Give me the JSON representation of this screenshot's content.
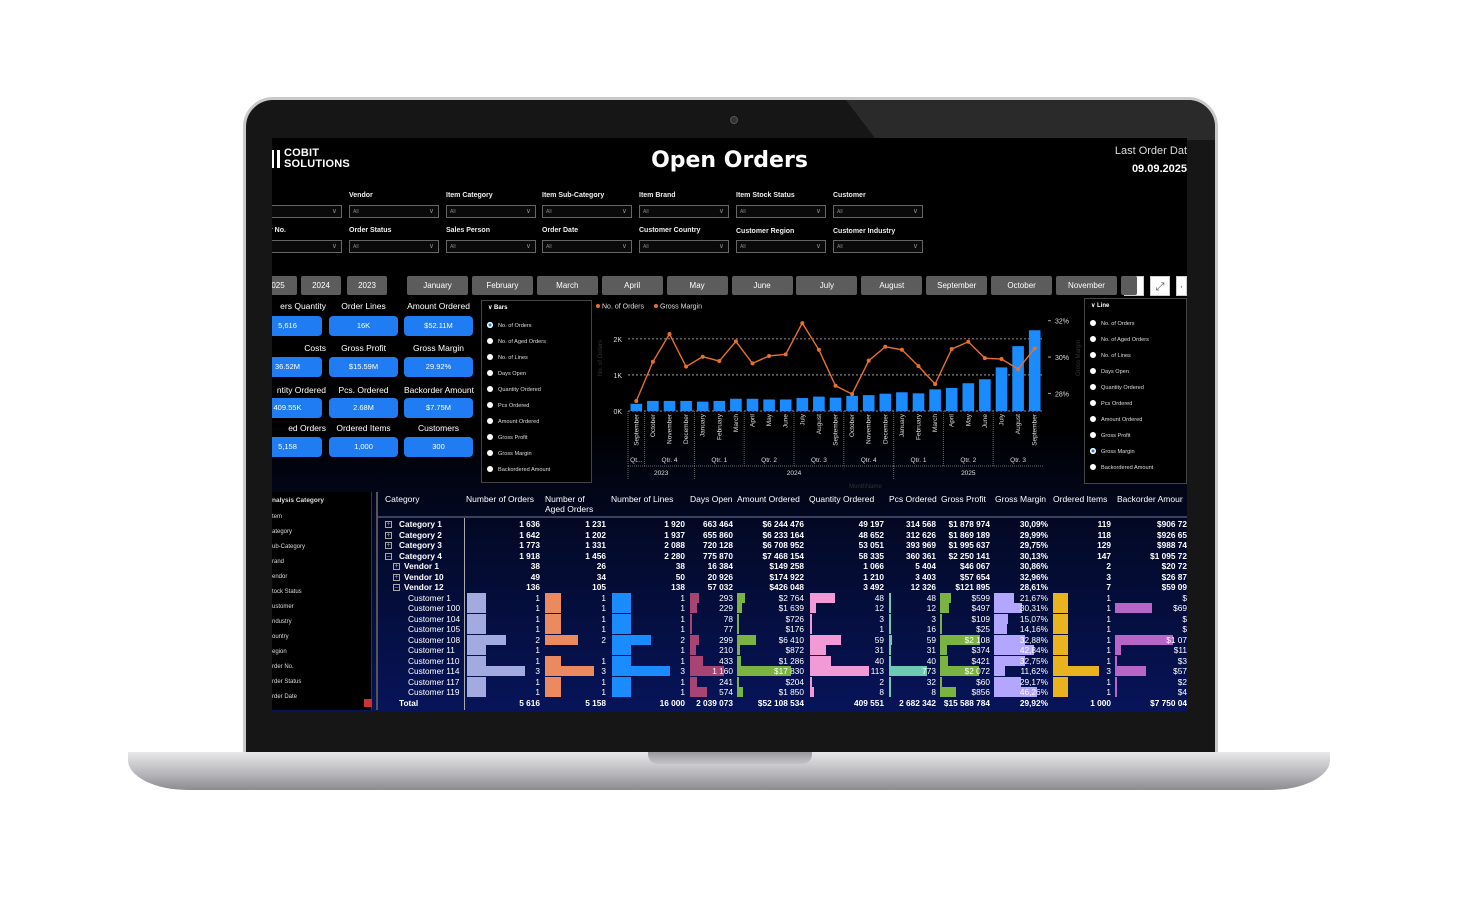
{
  "report": {
    "logo": "COBIT SOLUTIONS",
    "title": "Open Orders",
    "last_order_label": "Last Order Dat",
    "last_order_date": "09.09.2025"
  },
  "filters": [
    {
      "label": "",
      "value": ""
    },
    {
      "label": "Vendor",
      "value": "All"
    },
    {
      "label": "Item Category",
      "value": "All"
    },
    {
      "label": "Item Sub-Category",
      "value": "All"
    },
    {
      "label": "Item Brand",
      "value": "All"
    },
    {
      "label": "Item Stock Status",
      "value": "All"
    },
    {
      "label": "Customer",
      "value": "All"
    },
    {
      "label": "r No.",
      "value": ""
    },
    {
      "label": "Order Status",
      "value": "All"
    },
    {
      "label": "Sales Person",
      "value": "All"
    },
    {
      "label": "Order Date",
      "value": "All"
    },
    {
      "label": "Customer Country",
      "value": "All"
    },
    {
      "label": "Customer Region",
      "value": "All"
    },
    {
      "label": "Customer Industry",
      "value": "All"
    }
  ],
  "years": [
    "025",
    "2024",
    "2023"
  ],
  "months": [
    "January",
    "February",
    "March",
    "April",
    "May",
    "June",
    "July",
    "August",
    "September",
    "October",
    "November"
  ],
  "toolbar": {
    "filter_icon": "filter-icon",
    "focus_icon": "focus-mode-icon",
    "more_icon": "more-icon"
  },
  "kpis": [
    {
      "label": "ers Quantity",
      "value": "5,616"
    },
    {
      "label": "Order Lines",
      "value": "16K"
    },
    {
      "label": "Amount Ordered",
      "value": "$52.11M"
    },
    {
      "label": "Costs",
      "value": "36.52M"
    },
    {
      "label": "Gross Profit",
      "value": "$15.59M"
    },
    {
      "label": "Gross Margin",
      "value": "29.92%"
    },
    {
      "label": "ntity Ordered",
      "value": "409.55K"
    },
    {
      "label": "Pcs. Ordered",
      "value": "2.68M"
    },
    {
      "label": "Backorder Amount",
      "value": "$7.75M"
    },
    {
      "label": "ed Orders",
      "value": "5,158"
    },
    {
      "label": "Ordered Items",
      "value": "1,000"
    },
    {
      "label": "Customers",
      "value": "300"
    }
  ],
  "bars_slicer": {
    "title": "Bars",
    "selected": 0,
    "items": [
      "No. of Orders",
      "No. of Aged Orders",
      "No. of Lines",
      "Days Open",
      "Quantity Ordered",
      "Pcs Ordered",
      "Amount Ordered",
      "Gross Profit",
      "Gross Margin",
      "Backordered Amount"
    ]
  },
  "line_slicer": {
    "title": "Line",
    "selected": 8,
    "items": [
      "No. of Orders",
      "No. of Aged Orders",
      "No. of Lines",
      "Days Open",
      "Quantity Ordered",
      "Pcs Ordered",
      "Amount Ordered",
      "Gross Profit",
      "Gross Margin",
      "Backordered Amount"
    ]
  },
  "chart_data": {
    "type": "bar+line",
    "legend": [
      "No. of Orders",
      "Gross Margin"
    ],
    "legend_position": "top-left",
    "ylabel": "No. of Orders",
    "y2label": "Gross Margin",
    "xlabel": "MonthName",
    "ylim": [
      0,
      2.58
    ],
    "y_ticks": [
      "0K",
      "1K",
      "2K"
    ],
    "y2lim": [
      27.03,
      32.15
    ],
    "y2_ticks": [
      "28%",
      "30%",
      "32%"
    ],
    "grid": true,
    "categories": [
      "September",
      "October",
      "November",
      "December",
      "January",
      "February",
      "March",
      "April",
      "May",
      "June",
      "July",
      "August",
      "September",
      "October",
      "November",
      "December",
      "January",
      "February",
      "March",
      "April",
      "May",
      "June",
      "July",
      "August",
      "September"
    ],
    "quarters": [
      {
        "label": "Qt...",
        "span": 1
      },
      {
        "label": "Qtr. 4",
        "span": 3
      },
      {
        "label": "Qtr. 1",
        "span": 3
      },
      {
        "label": "Qtr. 2",
        "span": 3
      },
      {
        "label": "Qtr. 3",
        "span": 3
      },
      {
        "label": "Qtr. 4",
        "span": 3
      },
      {
        "label": "Qtr. 1",
        "span": 3
      },
      {
        "label": "Qtr. 2",
        "span": 3
      },
      {
        "label": "Qtr. 3",
        "span": 3
      }
    ],
    "years": [
      {
        "label": "2023",
        "span": 4
      },
      {
        "label": "2024",
        "span": 12
      },
      {
        "label": "2025",
        "span": 9
      }
    ],
    "series": [
      {
        "name": "No. of Orders",
        "type": "bar",
        "unit": "K",
        "color": "#1a8cff",
        "values": [
          0.2,
          0.28,
          0.28,
          0.28,
          0.26,
          0.28,
          0.34,
          0.34,
          0.32,
          0.32,
          0.36,
          0.4,
          0.37,
          0.42,
          0.44,
          0.48,
          0.52,
          0.49,
          0.6,
          0.64,
          0.77,
          0.88,
          1.21,
          1.8,
          2.24
        ]
      },
      {
        "name": "Gross Margin",
        "type": "line",
        "unit": "%",
        "color": "#e8702a",
        "values": [
          27.58,
          29.74,
          31.27,
          29.47,
          30.02,
          29.78,
          30.86,
          29.65,
          30.06,
          30.15,
          31.87,
          30.4,
          28.42,
          27.96,
          29.8,
          30.57,
          30.4,
          29.5,
          28.51,
          30.44,
          30.84,
          29.94,
          29.89,
          29.34,
          30.48
        ]
      }
    ]
  },
  "analysis_panel": {
    "title": "nalysis Category",
    "items": [
      "tem",
      "ategory",
      "ub-Category",
      "rand",
      "endor",
      "tock Status",
      "ustomer",
      "ndustry",
      "ountry",
      "egion",
      "rder No.",
      "rder Status",
      "rder Date"
    ]
  },
  "matrix": {
    "columns": [
      "Category",
      "Number of Orders",
      "Number of\nAged Orders",
      "Number of Lines",
      "Days Open",
      "Amount Ordered",
      "Quantity Ordered",
      "Pcs Ordered",
      "Gross Profit",
      "Gross Margin",
      "Ordered Items",
      "Backorder Amour"
    ],
    "bar_colors": [
      "#a3aae0",
      "#ea8a5e",
      "#1a8cff",
      "#a84473",
      "#7bb342",
      "#f29ad6",
      "#6fcab4",
      "#7bb342",
      "#b3a6ff",
      "#e9b320",
      "#b765c6"
    ],
    "rows": [
      {
        "level": 0,
        "exp": "+",
        "label": "Category 1",
        "values": [
          "1 636",
          "1 231",
          "1 920",
          "663 464",
          "$6 244 476",
          "49 197",
          "314 568",
          "$1 878 974",
          "30,09%",
          "119",
          "$906 72"
        ]
      },
      {
        "level": 0,
        "exp": "+",
        "label": "Category 2",
        "values": [
          "1 642",
          "1 202",
          "1 937",
          "655 860",
          "$6 233 164",
          "48 652",
          "312 626",
          "$1 869 189",
          "29,99%",
          "118",
          "$926 65"
        ]
      },
      {
        "level": 0,
        "exp": "+",
        "label": "Category 3",
        "values": [
          "1 773",
          "1 331",
          "2 088",
          "720 128",
          "$6 708 952",
          "53 051",
          "393 969",
          "$1 995 637",
          "29,75%",
          "129",
          "$988 74"
        ]
      },
      {
        "level": 0,
        "exp": "-",
        "label": "Category 4",
        "values": [
          "1 918",
          "1 456",
          "2 280",
          "775 870",
          "$7 468 154",
          "58 335",
          "360 361",
          "$2 250 141",
          "30,13%",
          "147",
          "$1 095 72"
        ]
      },
      {
        "level": 1,
        "exp": "+",
        "label": "Vendor 1",
        "values": [
          "38",
          "26",
          "38",
          "16 384",
          "$149 258",
          "1 066",
          "5 404",
          "$46 067",
          "30,86%",
          "2",
          "$20 72"
        ]
      },
      {
        "level": 1,
        "exp": "+",
        "label": "Vendor 10",
        "values": [
          "49",
          "34",
          "50",
          "20 926",
          "$174 922",
          "1 210",
          "3 403",
          "$57 654",
          "32,96%",
          "3",
          "$26 87"
        ]
      },
      {
        "level": 1,
        "exp": "-",
        "label": "Vendor 12",
        "values": [
          "136",
          "105",
          "138",
          "57 032",
          "$426 048",
          "3 492",
          "12 326",
          "$121 895",
          "28,61%",
          "7",
          "$59 09"
        ]
      },
      {
        "level": 2,
        "label": "Customer 1",
        "values": [
          "1",
          "1",
          "1",
          "293",
          "$2 764",
          "48",
          "48",
          "$599",
          "21,67%",
          "1",
          "$"
        ]
      },
      {
        "level": 2,
        "label": "Customer 100",
        "values": [
          "1",
          "1",
          "1",
          "229",
          "$1 639",
          "12",
          "12",
          "$497",
          "30,31%",
          "1",
          "$69"
        ]
      },
      {
        "level": 2,
        "label": "Customer 104",
        "values": [
          "1",
          "1",
          "1",
          "78",
          "$726",
          "3",
          "3",
          "$109",
          "15,07%",
          "1",
          "$"
        ]
      },
      {
        "level": 2,
        "label": "Customer 105",
        "values": [
          "1",
          "1",
          "1",
          "77",
          "$176",
          "1",
          "16",
          "$25",
          "14,16%",
          "1",
          "$"
        ]
      },
      {
        "level": 2,
        "label": "Customer 108",
        "values": [
          "2",
          "2",
          "2",
          "299",
          "$6 410",
          "59",
          "59",
          "$2 108",
          "32,88%",
          "1",
          "$1 07"
        ]
      },
      {
        "level": 2,
        "label": "Customer 11",
        "values": [
          "1",
          "",
          "1",
          "210",
          "$872",
          "31",
          "31",
          "$374",
          "42,84%",
          "1",
          "$11"
        ]
      },
      {
        "level": 2,
        "label": "Customer 110",
        "values": [
          "1",
          "1",
          "1",
          "433",
          "$1 286",
          "40",
          "40",
          "$421",
          "32,75%",
          "1",
          "$3"
        ]
      },
      {
        "level": 2,
        "label": "Customer 114",
        "values": [
          "3",
          "3",
          "3",
          "1 160",
          "$17 830",
          "113",
          "773",
          "$2 072",
          "11,62%",
          "3",
          "$57"
        ]
      },
      {
        "level": 2,
        "label": "Customer 117",
        "values": [
          "1",
          "1",
          "1",
          "241",
          "$204",
          "2",
          "32",
          "$60",
          "29,17%",
          "1",
          "$2"
        ]
      },
      {
        "level": 2,
        "label": "Customer 119",
        "values": [
          "1",
          "1",
          "1",
          "574",
          "$1 850",
          "8",
          "8",
          "$856",
          "46,26%",
          "1",
          "$4"
        ]
      }
    ],
    "total": {
      "label": "Total",
      "values": [
        "5 616",
        "5 158",
        "16 000",
        "2 039 073",
        "$52 108 534",
        "409 551",
        "2 682 342",
        "$15 588 784",
        "29,92%",
        "1 000",
        "$7 750 04"
      ]
    }
  }
}
